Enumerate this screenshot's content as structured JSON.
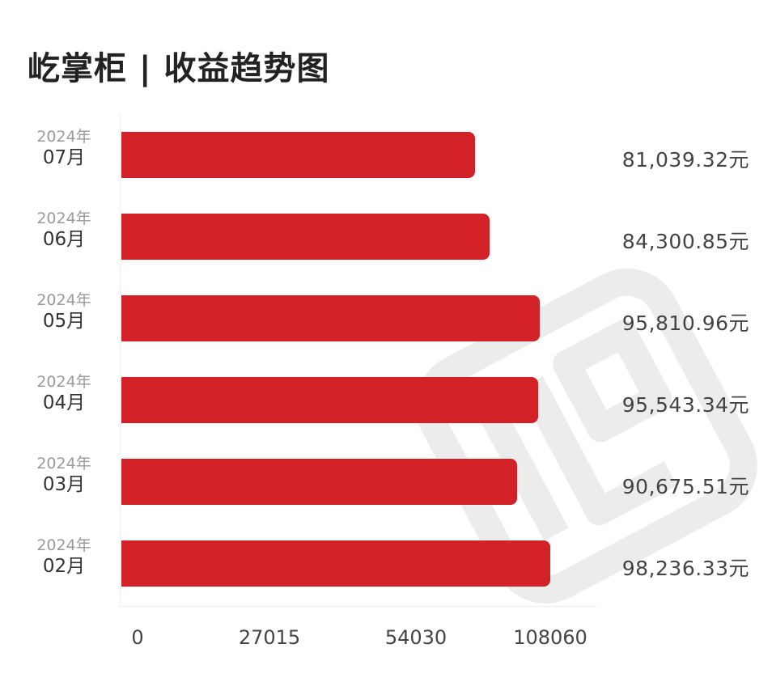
{
  "title": "屹掌柜 | 收益趋势图",
  "colors": {
    "bar": "#d32227",
    "text": "#333333",
    "year_text": "#9a9a9a",
    "watermark": "#ececec"
  },
  "watermark": {
    "icon": "brand-logo-watermark"
  },
  "rows": [
    {
      "year": "2024年",
      "month": "07月",
      "value": 81039.32,
      "value_label": "81,039.32元"
    },
    {
      "year": "2024年",
      "month": "06月",
      "value": 84300.85,
      "value_label": "84,300.85元"
    },
    {
      "year": "2024年",
      "month": "05月",
      "value": 95810.96,
      "value_label": "95,810.96元"
    },
    {
      "year": "2024年",
      "month": "04月",
      "value": 95543.34,
      "value_label": "95,543.34元"
    },
    {
      "year": "2024年",
      "month": "03月",
      "value": 90675.51,
      "value_label": "90,675.51元"
    },
    {
      "year": "2024年",
      "month": "02月",
      "value": 98236.33,
      "value_label": "98,236.33元"
    }
  ],
  "x_ticks": [
    "0",
    "27015",
    "54030",
    "108060"
  ],
  "chart_data": {
    "type": "bar",
    "orientation": "horizontal",
    "title": "屹掌柜 | 收益趋势图",
    "categories": [
      "2024年07月",
      "2024年06月",
      "2024年05月",
      "2024年04月",
      "2024年03月",
      "2024年02月"
    ],
    "values": [
      81039.32,
      84300.85,
      95810.96,
      95543.34,
      90675.51,
      98236.33
    ],
    "value_labels": [
      "81,039.32元",
      "84,300.85元",
      "95,810.96元",
      "95,543.34元",
      "90,675.51元",
      "98,236.33元"
    ],
    "unit": "元",
    "xlabel": "",
    "ylabel": "",
    "x_tick_labels": [
      "0",
      "27015",
      "54030",
      "108060"
    ],
    "xlim": [
      0,
      108060
    ],
    "grid": false,
    "legend": "none",
    "bar_color": "#d32227"
  }
}
